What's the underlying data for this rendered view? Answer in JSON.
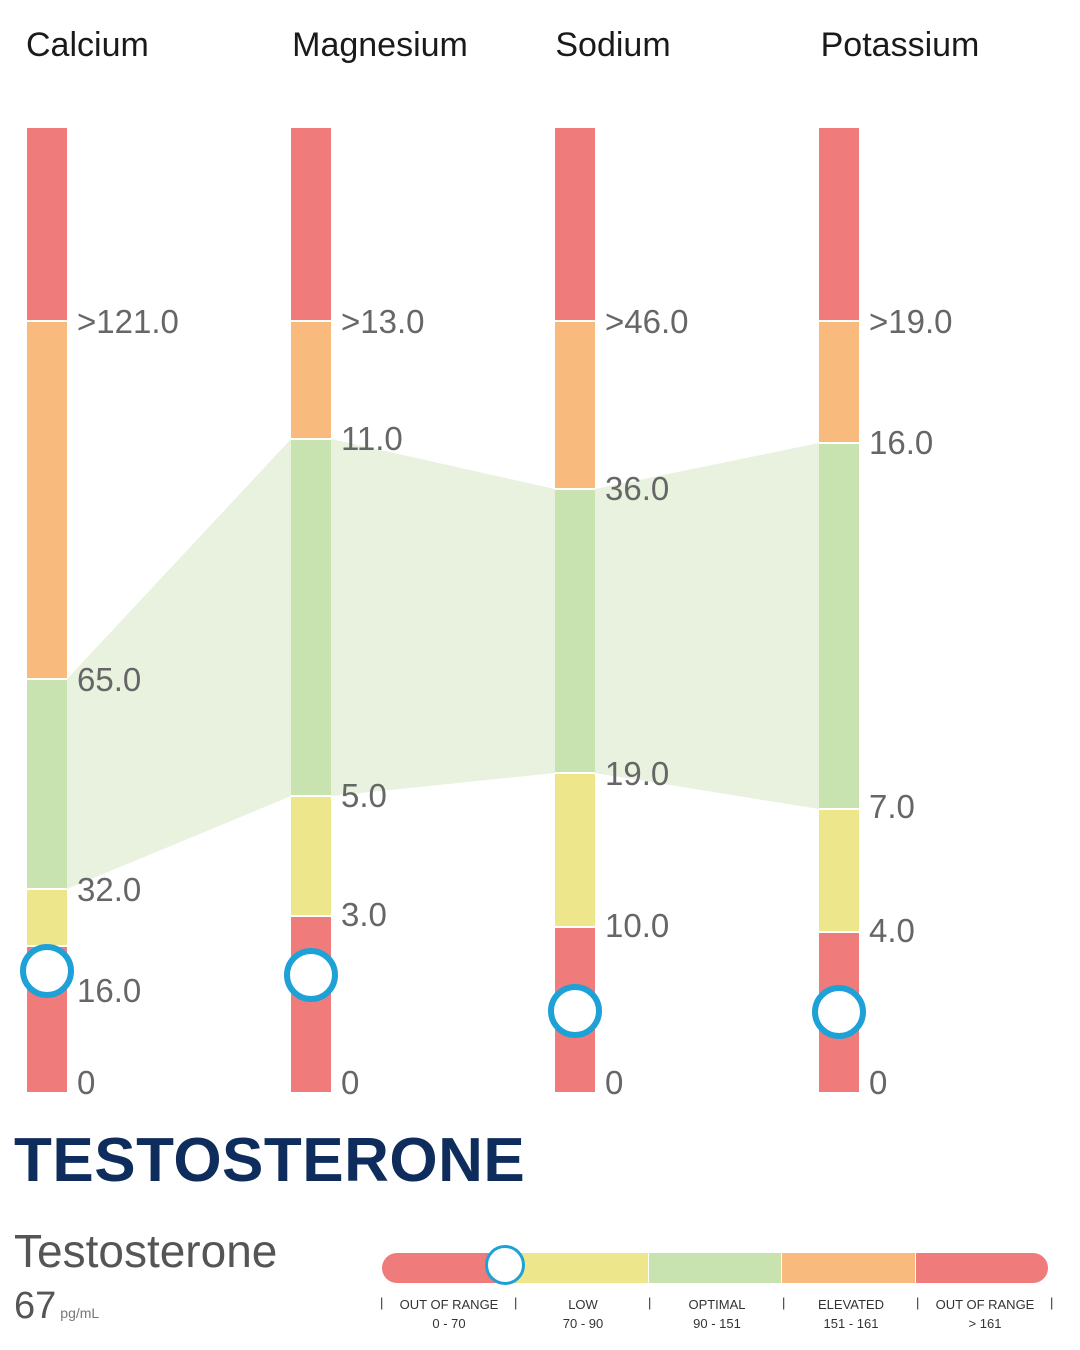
{
  "columns": [
    {
      "name": "Calcium",
      "zones": [
        {
          "label": "out of range",
          "color": "#ef7b7b"
        },
        {
          "label": "elevated",
          "color": "#f8bb7d"
        },
        {
          "label": "optimal",
          "color": "#c9e3b0"
        },
        {
          "label": "low",
          "color": "#ede68a"
        },
        {
          "label": "out of range",
          "color": "#ef7b7b"
        }
      ],
      "ticks": [
        ">121.0",
        "65.0",
        "32.0",
        "16.0",
        "0"
      ],
      "marker_value": 16.5
    },
    {
      "name": "Magnesium",
      "zones": [
        {
          "label": "out of range",
          "color": "#ef7b7b"
        },
        {
          "label": "elevated",
          "color": "#f8bb7d"
        },
        {
          "label": "optimal",
          "color": "#c9e3b0"
        },
        {
          "label": "low",
          "color": "#ede68a"
        },
        {
          "label": "out of range",
          "color": "#ef7b7b"
        }
      ],
      "ticks": [
        ">13.0",
        "11.0",
        "5.0",
        "3.0",
        "0"
      ],
      "marker_value": 2.4
    },
    {
      "name": "Sodium",
      "zones": [
        {
          "label": "out of range",
          "color": "#ef7b7b"
        },
        {
          "label": "elevated",
          "color": "#f8bb7d"
        },
        {
          "label": "optimal",
          "color": "#c9e3b0"
        },
        {
          "label": "low",
          "color": "#ede68a"
        },
        {
          "label": "out of range",
          "color": "#ef7b7b"
        }
      ],
      "ticks": [
        ">46.0",
        "36.0",
        "19.0",
        "10.0",
        "0"
      ],
      "marker_value": 5.0
    },
    {
      "name": "Potassium",
      "zones": [
        {
          "label": "out of range",
          "color": "#ef7b7b"
        },
        {
          "label": "elevated",
          "color": "#f8bb7d"
        },
        {
          "label": "optimal",
          "color": "#c9e3b0"
        },
        {
          "label": "low",
          "color": "#ede68a"
        },
        {
          "label": "out of range",
          "color": "#ef7b7b"
        }
      ],
      "ticks": [
        ">19.0",
        "16.0",
        "7.0",
        "4.0",
        "0"
      ],
      "marker_value": 2.0
    }
  ],
  "optimal_band_color": "#e8f2df",
  "marker_color": "#1ea1d6",
  "heading": "TESTOSTERONE",
  "test": {
    "name": "Testosterone",
    "value": "67",
    "unit": "pg/mL",
    "marker_value": 67,
    "ranges": [
      {
        "label": "OUT OF RANGE",
        "range": "0 - 70",
        "color": "#ef7b7b"
      },
      {
        "label": "LOW",
        "range": "70 - 90",
        "color": "#ede68a"
      },
      {
        "label": "OPTIMAL",
        "range": "90 - 151",
        "color": "#c9e3b0"
      },
      {
        "label": "ELEVATED",
        "range": "151 - 161",
        "color": "#f8bb7d"
      },
      {
        "label": "OUT OF RANGE",
        "range": "> 161",
        "color": "#ef7b7b"
      }
    ],
    "separator": "|"
  }
}
